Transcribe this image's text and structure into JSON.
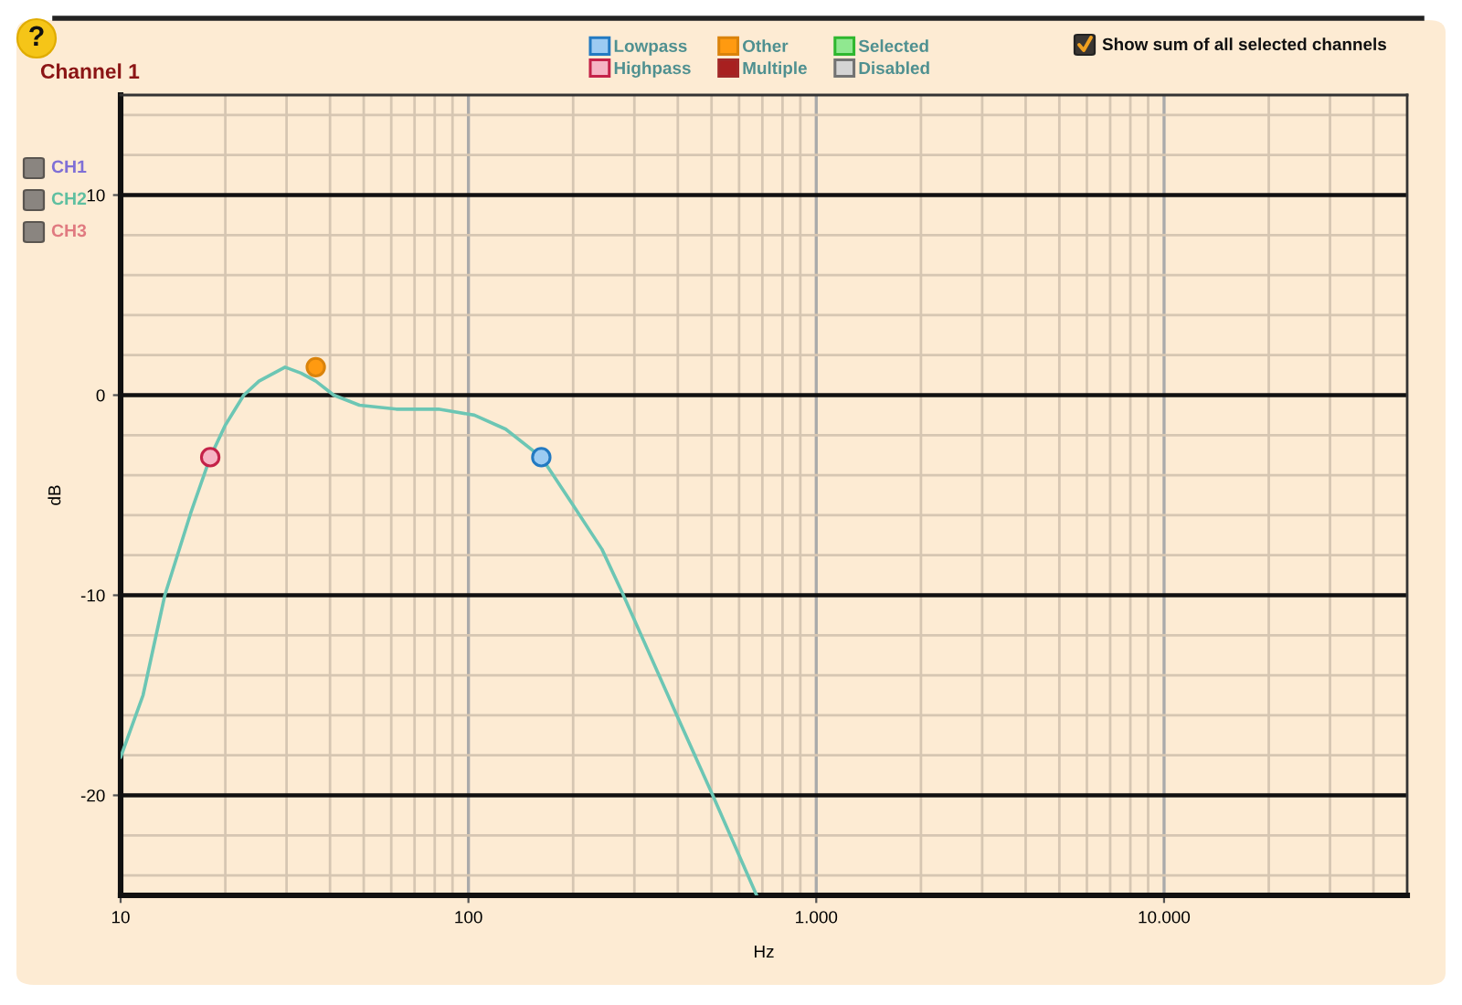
{
  "chart_data": {
    "type": "line",
    "title": "Channel 1",
    "xlabel": "Hz",
    "ylabel": "dB",
    "log": "x",
    "xlim": [
      10,
      50000
    ],
    "ylim": [
      -25,
      15
    ],
    "xticks": [
      10,
      {
        "value": 20,
        "label": null
      },
      {
        "value": 30,
        "label": null
      },
      {
        "value": 40,
        "label": null
      },
      {
        "value": 50,
        "label": null
      },
      {
        "value": 60,
        "label": null
      },
      {
        "value": 70,
        "label": null
      },
      {
        "value": 80,
        "label": null
      },
      {
        "value": 90,
        "label": null
      },
      100,
      {
        "value": 200,
        "label": null
      },
      {
        "value": 300,
        "label": null
      },
      {
        "value": 400,
        "label": null
      },
      {
        "value": 500,
        "label": null
      },
      {
        "value": 600,
        "label": null
      },
      {
        "value": 700,
        "label": null
      },
      {
        "value": 800,
        "label": null
      },
      {
        "value": 900,
        "label": null
      },
      {
        "value": 1000,
        "label": "1.000"
      },
      {
        "value": 2000,
        "label": null
      },
      {
        "value": 3000,
        "label": null
      },
      {
        "value": 4000,
        "label": null
      },
      {
        "value": 5000,
        "label": null
      },
      {
        "value": 6000,
        "label": null
      },
      {
        "value": 7000,
        "label": null
      },
      {
        "value": 8000,
        "label": null
      },
      {
        "value": 9000,
        "label": null
      },
      {
        "value": 10000,
        "label": "10.000"
      },
      {
        "value": 20000,
        "label": null
      },
      {
        "value": 30000,
        "label": null
      },
      {
        "value": 40000,
        "label": null
      }
    ],
    "yticks": [
      {
        "value": -24,
        "label": null
      },
      {
        "value": -22,
        "label": null
      },
      -20,
      {
        "value": -18,
        "label": null
      },
      {
        "value": -16,
        "label": null
      },
      {
        "value": -14,
        "label": null
      },
      {
        "value": -12,
        "label": null
      },
      -10,
      {
        "value": -8,
        "label": null
      },
      {
        "value": -6,
        "label": null
      },
      {
        "value": -4,
        "label": null
      },
      {
        "value": -2,
        "label": null
      },
      0,
      {
        "value": 2,
        "label": null
      },
      {
        "value": 4,
        "label": null
      },
      {
        "value": 6,
        "label": null
      },
      {
        "value": 8,
        "label": null
      },
      10,
      {
        "value": 12,
        "label": null
      },
      {
        "value": 14,
        "label": null
      }
    ],
    "grid": true,
    "legend": "top",
    "annotations": [
      "?",
      "Show sum of all selected channels",
      "CH1",
      "CH2",
      "CH3"
    ],
    "series": [
      {
        "color": "#6cc6b4",
        "x": [
          10,
          11.6,
          13.4,
          15.9,
          18.1,
          20,
          22.6,
          25,
          29.7,
          33,
          36.4,
          41,
          48.6,
          62,
          82,
          104,
          128,
          162,
          200,
          242,
          279,
          395,
          504,
          674
        ],
        "values": [
          -18.1,
          -15,
          -10,
          -5.9,
          -3.1,
          -1.5,
          0,
          0.7,
          1.4,
          1.1,
          0.7,
          0,
          -0.5,
          -0.7,
          -0.7,
          -1.0,
          -1.7,
          -3.1,
          -5.5,
          -7.7,
          -10,
          -15.9,
          -20,
          -25
        ]
      },
      {
        "name": "Lowpass",
        "type": "scatter",
        "marker": "circle",
        "color": "#9ccbf2",
        "x": [
          162
        ],
        "values": [
          -3.1
        ]
      },
      {
        "name": "Highpass",
        "type": "scatter",
        "marker": "circle",
        "color": "#f6b4c4",
        "x": [
          18.1
        ],
        "values": [
          -3.1
        ]
      },
      {
        "name": "Other",
        "type": "scatter",
        "marker": "circle",
        "color": "#ff9a10",
        "x": [
          36.4
        ],
        "values": [
          1.4
        ]
      },
      {
        "name": "Multiple",
        "type": "scatter",
        "color": "#a82020"
      },
      {
        "name": "Selected",
        "type": "scatter",
        "color": "#90e890"
      },
      {
        "name": "Disabled",
        "type": "scatter",
        "color": "#d4d4d4"
      }
    ]
  }
}
